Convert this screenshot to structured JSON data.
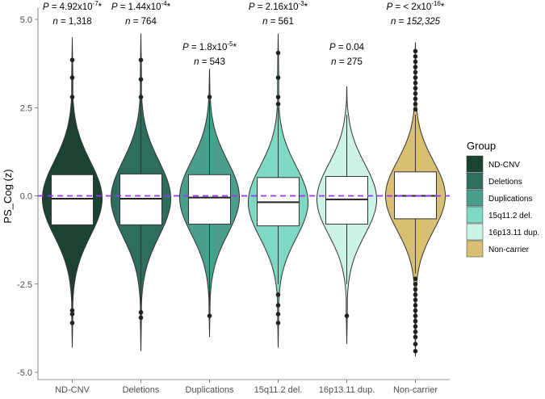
{
  "chart_data": {
    "type": "violin",
    "title": "",
    "xlabel": "",
    "ylabel": "PS_Cog (z)",
    "ylim": [
      -5.1,
      5.1
    ],
    "y_ticks": [
      "-5.0",
      "-2.5",
      "0.0",
      "2.5",
      "5.0"
    ],
    "y_tick_values": [
      -5,
      -2.5,
      0,
      2.5,
      5
    ],
    "reference_line": {
      "y": 0,
      "color": "#9b30ff",
      "style": "dashed"
    },
    "legend": {
      "title": "Group",
      "position": "right",
      "entries": [
        "ND-CNV",
        "Deletions",
        "Duplications",
        "15q11.2 del.",
        "16p13.11 dup.",
        "Non-carrier"
      ]
    },
    "groups": [
      {
        "name": "ND-CNV",
        "color": "#1b4332",
        "ymin": -4.3,
        "ymax": 4.5,
        "whisker_low": -3.1,
        "whisker_high": 2.7,
        "q1": -0.82,
        "median": -0.08,
        "q3": 0.6,
        "outliers": [
          3.85,
          3.35,
          2.8,
          -3.25,
          -3.35,
          -3.6
        ],
        "p_label": "P = 4.92x10",
        "p_sup": "-7",
        "p_star": "*",
        "n_label": "n = 1,318"
      },
      {
        "name": "Deletions",
        "color": "#2e6e5e",
        "ymin": -4.4,
        "ymax": 4.6,
        "whisker_low": -3.1,
        "whisker_high": 2.7,
        "q1": -0.82,
        "median": -0.08,
        "q3": 0.62,
        "outliers": [
          3.85,
          3.3,
          2.8,
          -3.3,
          -3.45
        ],
        "p_label": "P = 1.44x10",
        "p_sup": "-4",
        "p_star": "*",
        "n_label": "n = 764"
      },
      {
        "name": "Duplications",
        "color": "#4a9e8c",
        "ymin": -4.0,
        "ymax": 3.6,
        "whisker_low": -3.1,
        "whisker_high": 2.7,
        "q1": -0.8,
        "median": -0.05,
        "q3": 0.6,
        "outliers": [
          2.8,
          -3.4
        ],
        "p_label": "P = 1.8x10",
        "p_sup": "-5",
        "p_star": "*",
        "n_label": "n = 543"
      },
      {
        "name": "15q11.2 del.",
        "color": "#7fd8c2",
        "ymin": -4.3,
        "ymax": 4.6,
        "whisker_low": -2.5,
        "whisker_high": 2.5,
        "q1": -0.85,
        "median": -0.18,
        "q3": 0.52,
        "outliers": [
          4.05,
          3.35,
          2.8,
          2.6,
          -2.8,
          -3.1,
          -3.35,
          -3.6
        ],
        "p_label": "P = 2.16x10",
        "p_sup": "-3",
        "p_star": "*",
        "n_label": "n = 561"
      },
      {
        "name": "16p13.11 dup.",
        "color": "#cdf2e8",
        "ymin": -4.2,
        "ymax": 3.1,
        "whisker_low": -2.5,
        "whisker_high": 2.3,
        "q1": -0.8,
        "median": -0.1,
        "q3": 0.55,
        "outliers": [
          -3.4
        ],
        "p_label": "P = 0.04",
        "p_sup": "",
        "p_star": "",
        "n_label": "n = 275"
      },
      {
        "name": "Non-carrier",
        "color": "#d9bf73",
        "ymin": -4.55,
        "ymax": 4.35,
        "whisker_low": -2.2,
        "whisker_high": 2.3,
        "q1": -0.65,
        "median": 0.0,
        "q3": 0.68,
        "outliers": [
          4.1,
          3.95,
          3.8,
          3.65,
          3.5,
          3.35,
          3.2,
          3.05,
          2.9,
          2.75,
          2.6,
          2.45,
          -2.35,
          -2.5,
          -2.65,
          -2.8,
          -2.95,
          -3.1,
          -3.25,
          -3.4,
          -3.55,
          -3.7,
          -3.85,
          -4.0,
          -4.2,
          -4.4
        ],
        "p_label": "P = < 2x10",
        "p_sup": "-16",
        "p_star": "*",
        "n_label": "n = 152,325"
      }
    ]
  }
}
